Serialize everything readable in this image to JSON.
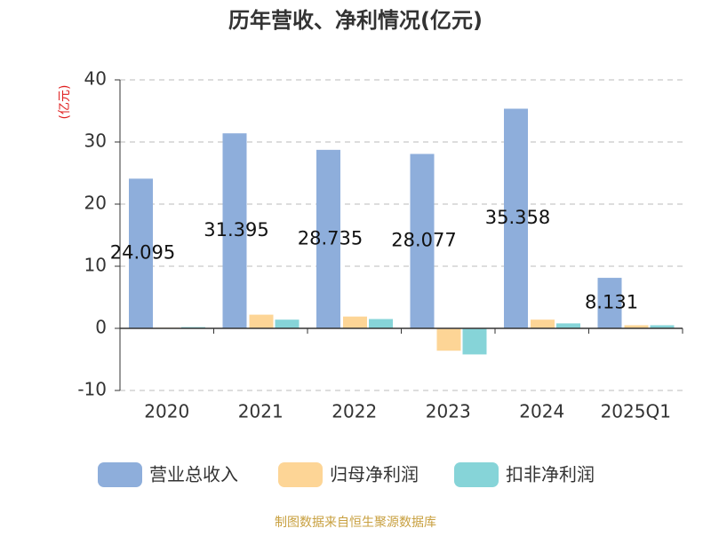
{
  "chart_data": {
    "type": "bar",
    "title": "历年营收、净利情况(亿元)",
    "y_label": "(亿元)",
    "categories": [
      "2020",
      "2021",
      "2022",
      "2023",
      "2024",
      "2025Q1"
    ],
    "series": [
      {
        "name": "营业总收入",
        "color": "#8eaedb",
        "values": [
          24.095,
          31.395,
          28.735,
          28.077,
          35.358,
          8.131
        ],
        "labels": true
      },
      {
        "name": "归母净利润",
        "color": "#fdd596",
        "values": [
          0.1,
          2.2,
          1.9,
          -3.6,
          1.4,
          0.5
        ]
      },
      {
        "name": "扣非净利润",
        "color": "#86d4d8",
        "values": [
          0.2,
          1.4,
          1.5,
          -4.2,
          0.8,
          0.5
        ]
      }
    ],
    "ylim": [
      -10,
      40
    ],
    "yticks": [
      -10,
      0,
      10,
      20,
      30,
      40
    ],
    "grid": true,
    "source": "制图数据来自恒生聚源数据库"
  }
}
